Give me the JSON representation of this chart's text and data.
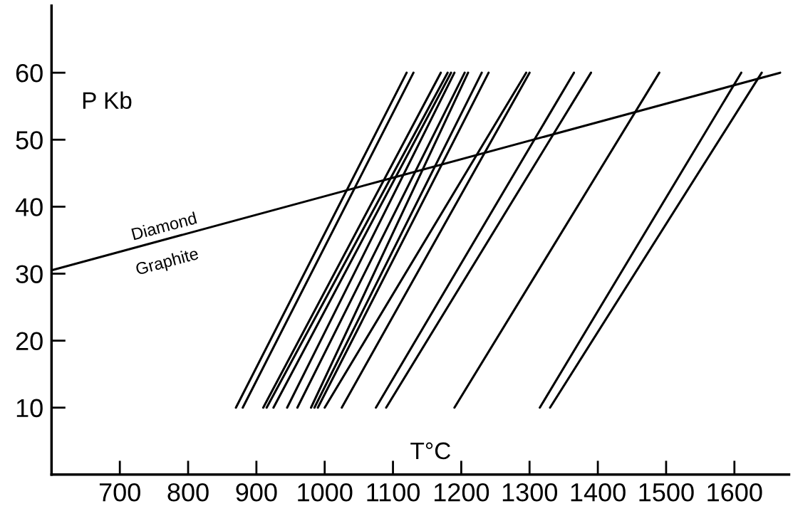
{
  "chart_data": {
    "type": "line",
    "xlabel": "T°C",
    "ylabel": "P Kb",
    "xlim": [
      600,
      1680
    ],
    "ylim": [
      0,
      70
    ],
    "xticks": [
      700,
      800,
      900,
      1000,
      1100,
      1200,
      1300,
      1400,
      1500,
      1600
    ],
    "yticks": [
      10,
      20,
      30,
      40,
      50,
      60
    ],
    "grid": false,
    "legend": false,
    "marker": "none",
    "line_style": "solid",
    "series": [
      {
        "color": "#000000",
        "x": [
          600,
          1667
        ],
        "values": [
          30.5,
          60
        ]
      },
      {
        "color": "#000000",
        "x": [
          870,
          1120
        ],
        "values": [
          10,
          60
        ]
      },
      {
        "color": "#000000",
        "x": [
          880,
          1130
        ],
        "values": [
          10,
          60
        ]
      },
      {
        "color": "#000000",
        "x": [
          910,
          1170
        ],
        "values": [
          10,
          60
        ]
      },
      {
        "color": "#000000",
        "x": [
          915,
          1180
        ],
        "values": [
          10,
          60
        ]
      },
      {
        "color": "#000000",
        "x": [
          925,
          1185
        ],
        "values": [
          10,
          60
        ]
      },
      {
        "color": "#000000",
        "x": [
          945,
          1190
        ],
        "values": [
          10,
          60
        ]
      },
      {
        "color": "#000000",
        "x": [
          960,
          1205
        ],
        "values": [
          10,
          60
        ]
      },
      {
        "color": "#000000",
        "x": [
          980,
          1210
        ],
        "values": [
          10,
          60
        ]
      },
      {
        "color": "#000000",
        "x": [
          985,
          1230
        ],
        "values": [
          10,
          60
        ]
      },
      {
        "color": "#000000",
        "x": [
          990,
          1240
        ],
        "values": [
          10,
          60
        ]
      },
      {
        "color": "#000000",
        "x": [
          1000,
          1295
        ],
        "values": [
          10,
          60
        ]
      },
      {
        "color": "#000000",
        "x": [
          1025,
          1300
        ],
        "values": [
          10,
          60
        ]
      },
      {
        "color": "#000000",
        "x": [
          1075,
          1365
        ],
        "values": [
          10,
          60
        ]
      },
      {
        "color": "#000000",
        "x": [
          1090,
          1390
        ],
        "values": [
          10,
          60
        ]
      },
      {
        "color": "#000000",
        "x": [
          1190,
          1490
        ],
        "values": [
          10,
          60
        ]
      },
      {
        "color": "#000000",
        "x": [
          1315,
          1610
        ],
        "values": [
          10,
          60
        ]
      },
      {
        "color": "#000000",
        "x": [
          1330,
          1640
        ],
        "values": [
          10,
          60
        ]
      }
    ],
    "annotations": [
      "Diamond",
      "Graphite"
    ]
  }
}
